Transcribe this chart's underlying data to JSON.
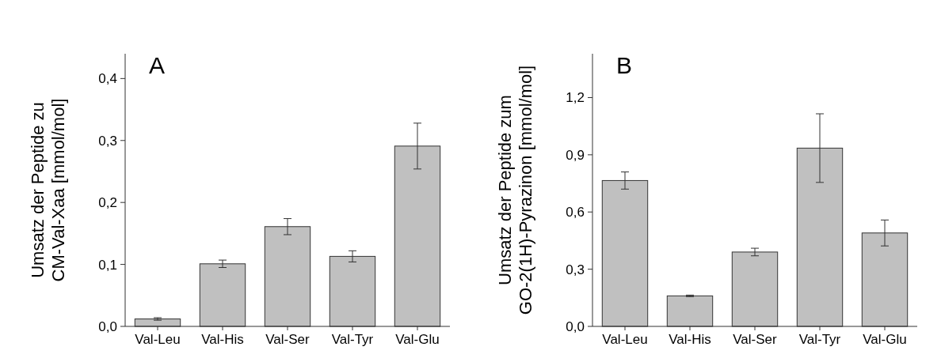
{
  "chart_data": [
    {
      "type": "bar",
      "title": "A",
      "ylabel": "Umsatz der Peptide zu CM-Val-Xaa [mmol/mol]",
      "categories": [
        "Val-Leu",
        "Val-His",
        "Val-Ser",
        "Val-Tyr",
        "Val-Glu"
      ],
      "values": [
        0.012,
        0.101,
        0.161,
        0.113,
        0.291
      ],
      "errors": [
        0.002,
        0.006,
        0.013,
        0.009,
        0.037
      ],
      "color": "#c0c0c0",
      "ylim": [
        0,
        0.44
      ],
      "yticks": [
        {
          "value": 0,
          "label": "0,0"
        },
        {
          "value": 0.1,
          "label": "0,1"
        },
        {
          "value": 0.2,
          "label": "0,2"
        },
        {
          "value": 0.3,
          "label": "0,3"
        },
        {
          "value": 0.4,
          "label": "0,4"
        }
      ],
      "grid": false
    },
    {
      "type": "bar",
      "title": "B",
      "ylabel": "Umsatz der Peptide zum GO-2(1H)-Pyrazinon [mmol/mol]",
      "categories": [
        "Val-Leu",
        "Val-His",
        "Val-Ser",
        "Val-Tyr",
        "Val-Glu"
      ],
      "values": [
        0.765,
        0.16,
        0.39,
        0.935,
        0.49
      ],
      "errors": [
        0.045,
        0.004,
        0.02,
        0.18,
        0.068
      ],
      "color": "#c0c0c0",
      "ylim": [
        0,
        1.43
      ],
      "yticks": [
        {
          "value": 0,
          "label": "0,0"
        },
        {
          "value": 0.3,
          "label": "0,3"
        },
        {
          "value": 0.6,
          "label": "0,6"
        },
        {
          "value": 0.9,
          "label": "0,9"
        },
        {
          "value": 1.2,
          "label": "1,2"
        }
      ],
      "grid": false
    }
  ]
}
